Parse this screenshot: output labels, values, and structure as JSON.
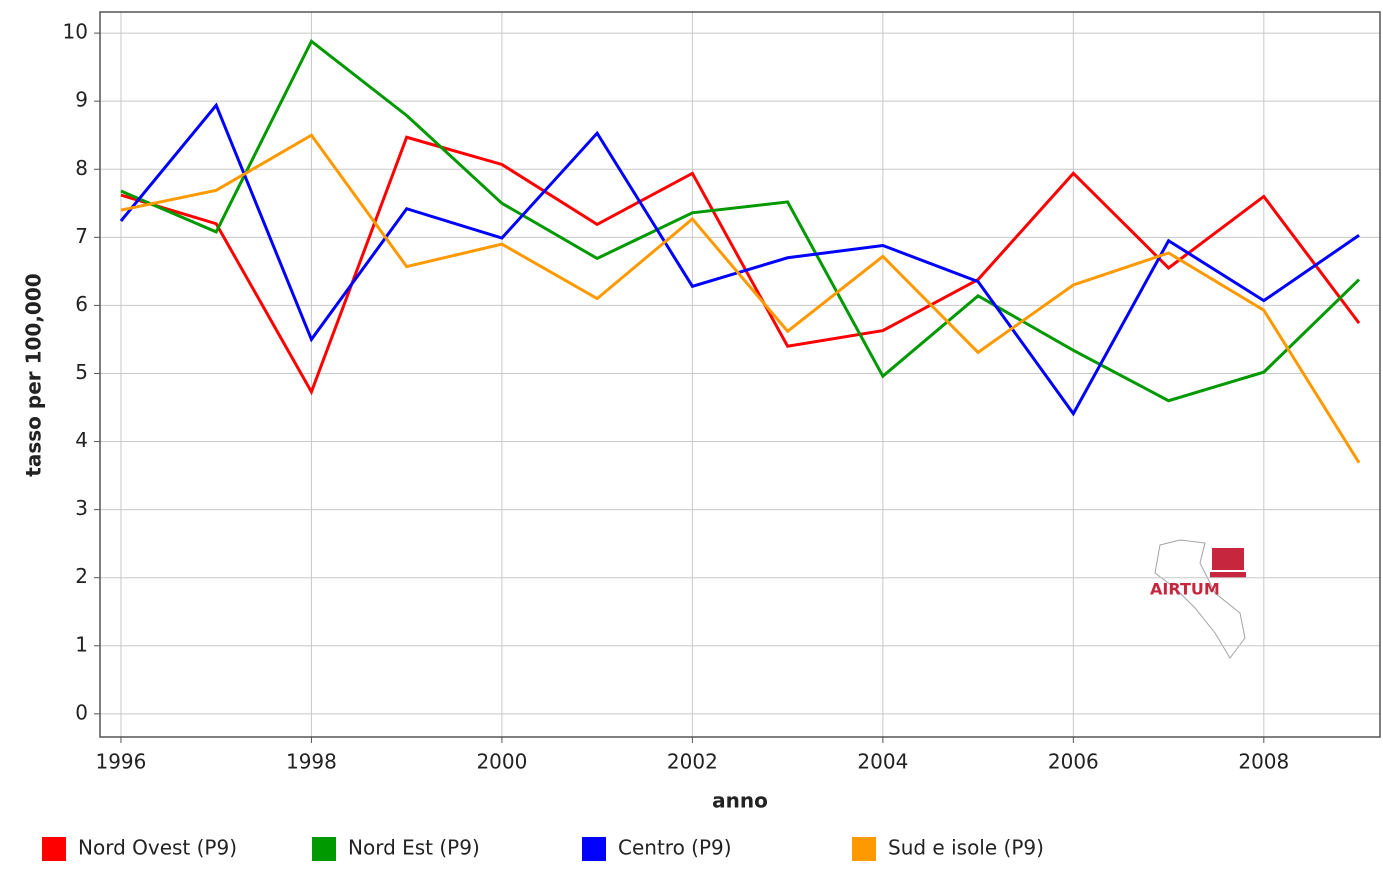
{
  "chart_data": {
    "type": "line",
    "x_label": "anno",
    "y_label": "tasso per 100,000",
    "logo": "AIRTUM",
    "x": [
      1996,
      1997,
      1998,
      1999,
      2000,
      2001,
      2002,
      2003,
      2004,
      2005,
      2006,
      2007,
      2008,
      2009
    ],
    "series": [
      {
        "name": "Nord Ovest (P9)",
        "color": "#ff0000",
        "values": [
          7.62,
          7.2,
          4.73,
          8.47,
          8.07,
          7.19,
          7.94,
          5.4,
          5.63,
          6.38,
          7.94,
          6.55,
          7.6,
          5.74
        ]
      },
      {
        "name": "Nord Est (P9)",
        "color": "#009900",
        "values": [
          7.68,
          7.08,
          9.88,
          8.79,
          7.5,
          6.69,
          7.36,
          7.52,
          4.96,
          6.14,
          5.34,
          4.6,
          5.02,
          6.38
        ]
      },
      {
        "name": "Centro (P9)",
        "color": "#0000ff",
        "values": [
          7.24,
          8.94,
          5.5,
          7.42,
          6.99,
          8.53,
          6.28,
          6.7,
          6.88,
          6.35,
          4.41,
          6.95,
          6.07,
          7.03
        ]
      },
      {
        "name": "Sud e isole (P9)",
        "color": "#ff9900",
        "values": [
          7.4,
          7.69,
          8.5,
          6.57,
          6.9,
          6.1,
          7.27,
          5.62,
          6.72,
          5.31,
          6.3,
          6.77,
          5.93,
          3.69
        ]
      }
    ],
    "xlim": [
      1995.78,
      2009.22
    ],
    "ylim": [
      -0.34,
      10.31
    ],
    "xticks": [
      1996,
      1998,
      2000,
      2002,
      2004,
      2006,
      2008
    ],
    "yticks": [
      0,
      1,
      2,
      3,
      4,
      5,
      6,
      7,
      8,
      9,
      10
    ],
    "grid": true
  }
}
